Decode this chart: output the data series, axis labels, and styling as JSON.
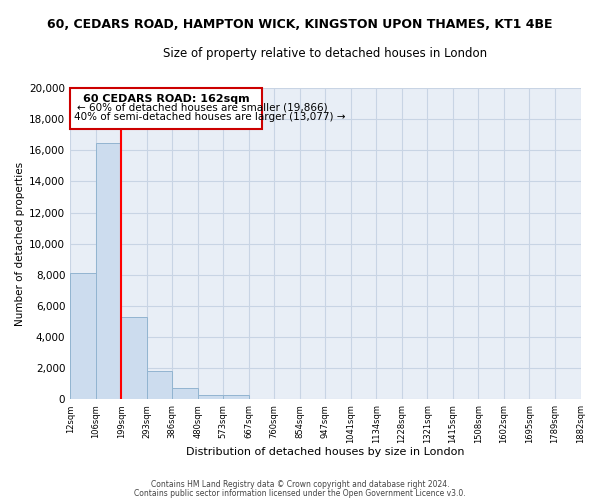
{
  "title_line1": "60, CEDARS ROAD, HAMPTON WICK, KINGSTON UPON THAMES, KT1 4BE",
  "title_line2": "Size of property relative to detached houses in London",
  "xlabel": "Distribution of detached houses by size in London",
  "ylabel": "Number of detached properties",
  "bar_values": [
    8100,
    16500,
    5300,
    1800,
    750,
    250,
    250,
    0,
    0,
    0,
    0,
    0,
    0,
    0,
    0,
    0,
    0,
    0,
    0,
    0
  ],
  "bar_color": "#ccdcee",
  "bar_edge_color": "#92b4d0",
  "x_labels": [
    "12sqm",
    "106sqm",
    "199sqm",
    "293sqm",
    "386sqm",
    "480sqm",
    "573sqm",
    "667sqm",
    "760sqm",
    "854sqm",
    "947sqm",
    "1041sqm",
    "1134sqm",
    "1228sqm",
    "1321sqm",
    "1415sqm",
    "1508sqm",
    "1602sqm",
    "1695sqm",
    "1789sqm",
    "1882sqm"
  ],
  "ylim": [
    0,
    20000
  ],
  "yticks": [
    0,
    2000,
    4000,
    6000,
    8000,
    10000,
    12000,
    14000,
    16000,
    18000,
    20000
  ],
  "red_line_x": 2,
  "annotation_title": "60 CEDARS ROAD: 162sqm",
  "annotation_line1": "← 60% of detached houses are smaller (19,866)",
  "annotation_line2": "40% of semi-detached houses are larger (13,077) →",
  "footer_line1": "Contains HM Land Registry data © Crown copyright and database right 2024.",
  "footer_line2": "Contains public sector information licensed under the Open Government Licence v3.0.",
  "background_color": "#ffffff",
  "plot_bg_color": "#e8eef6",
  "grid_color": "#c8d4e4"
}
